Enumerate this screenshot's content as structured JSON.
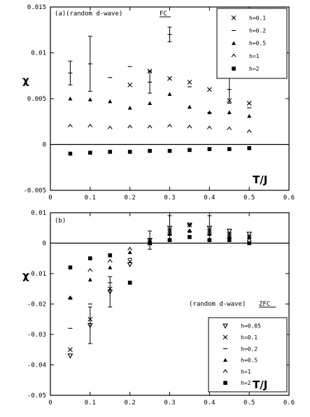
{
  "chart_data": [
    {
      "type": "scatter",
      "panel_label": "(a)",
      "annotation": "(random d-wave)",
      "tag": "FC",
      "xlabel": "T/J",
      "ylabel": "χ",
      "xlim": [
        0,
        0.6
      ],
      "ylim": [
        -0.005,
        0.015
      ],
      "xticks": [
        "0",
        "0.1",
        "0.2",
        "0.3",
        "0.4",
        "0.5",
        "0.6"
      ],
      "yticks": [
        "-0.005",
        "0",
        "0.005",
        "0.01",
        "0.015"
      ],
      "legend_position": "top-right",
      "zero_line": true,
      "series": [
        {
          "name": "h=0.1",
          "marker": "x",
          "x": [
            0.2,
            0.25,
            0.3,
            0.35,
            0.4,
            0.45,
            0.5
          ],
          "y": [
            0.0065,
            0.008,
            0.0072,
            0.0068,
            0.006,
            0.0048,
            0.0045
          ]
        },
        {
          "name": "h=0.2",
          "marker": "dash",
          "x": [
            0.05,
            0.1,
            0.15,
            0.2,
            0.25,
            0.3,
            0.35,
            0.4,
            0.45,
            0.5
          ],
          "y": [
            0.0078,
            0.0088,
            0.0073,
            0.0085,
            0.0068,
            0.012,
            0.0063,
            0.0035,
            0.006,
            0.004
          ],
          "err": [
            0.0013,
            0.003,
            0,
            0,
            0.0012,
            0.0008,
            0,
            0,
            0.0015,
            0
          ]
        },
        {
          "name": "h=0.5",
          "marker": "triangle",
          "x": [
            0.05,
            0.1,
            0.15,
            0.2,
            0.25,
            0.3,
            0.35,
            0.4,
            0.45,
            0.5
          ],
          "y": [
            0.005,
            0.0049,
            0.0047,
            0.004,
            0.0045,
            0.0055,
            0.0041,
            0.0035,
            0.0035,
            0.0031
          ]
        },
        {
          "name": "h=1",
          "marker": "caret",
          "x": [
            0.05,
            0.1,
            0.15,
            0.2,
            0.25,
            0.3,
            0.35,
            0.4,
            0.45,
            0.5
          ],
          "y": [
            0.002,
            0.002,
            0.0018,
            0.0019,
            0.0019,
            0.002,
            0.0019,
            0.0018,
            0.0017,
            0.0014
          ]
        },
        {
          "name": "h=2",
          "marker": "square",
          "x": [
            0.05,
            0.1,
            0.15,
            0.2,
            0.25,
            0.3,
            0.35,
            0.4,
            0.45,
            0.5
          ],
          "y": [
            -0.001,
            -0.0009,
            -0.0008,
            -0.0008,
            -0.0007,
            -0.0007,
            -0.0006,
            -0.0005,
            -0.0005,
            -0.0004
          ]
        }
      ]
    },
    {
      "type": "scatter",
      "panel_label": "(b)",
      "annotation": "(random d-wave)",
      "tag": "ZFC",
      "xlabel": "T/J",
      "ylabel": "χ",
      "xlim": [
        0,
        0.6
      ],
      "ylim": [
        -0.05,
        0.01
      ],
      "xticks": [
        "0",
        "0.1",
        "0.2",
        "0.3",
        "0.4",
        "0.5",
        "0.6"
      ],
      "yticks": [
        "-0.05",
        "-0.04",
        "-0.03",
        "-0.02",
        "-0.01",
        "0",
        "0.01"
      ],
      "legend_position": "lower-right",
      "zero_line": true,
      "series": [
        {
          "name": "h=0.05",
          "marker": "triangle-down",
          "x": [
            0.05,
            0.1,
            0.15,
            0.2,
            0.25,
            0.3,
            0.35,
            0.4,
            0.45,
            0.5
          ],
          "y": [
            -0.037,
            -0.027,
            -0.016,
            -0.007,
            0.001,
            0.005,
            0.006,
            0.005,
            0.004,
            0.003
          ],
          "err": [
            0,
            0.006,
            0.005,
            0,
            0.003,
            0.004,
            0,
            0.004,
            0,
            0
          ]
        },
        {
          "name": "h=0.1",
          "marker": "x",
          "x": [
            0.05,
            0.1,
            0.15,
            0.2,
            0.25,
            0.3,
            0.35,
            0.4,
            0.45,
            0.5
          ],
          "y": [
            -0.035,
            -0.025,
            -0.015,
            -0.006,
            0.0,
            0.004,
            0.006,
            0.004,
            0.003,
            0.002
          ]
        },
        {
          "name": "h=0.2",
          "marker": "dash",
          "x": [
            0.05,
            0.1,
            0.15,
            0.2,
            0.25,
            0.3,
            0.35,
            0.4,
            0.45,
            0.5
          ],
          "y": [
            -0.028,
            -0.02,
            -0.013,
            -0.005,
            0.0,
            0.004,
            0.006,
            0.004,
            0.003,
            0.002
          ]
        },
        {
          "name": "h=0.5",
          "marker": "triangle",
          "x": [
            0.05,
            0.1,
            0.15,
            0.2,
            0.25,
            0.3,
            0.35,
            0.4,
            0.45,
            0.5
          ],
          "y": [
            -0.018,
            -0.012,
            -0.008,
            -0.003,
            0.001,
            0.003,
            0.004,
            0.003,
            0.002,
            0.002
          ]
        },
        {
          "name": "h=1",
          "marker": "caret",
          "x": [
            0.05,
            0.1,
            0.15,
            0.2,
            0.25,
            0.3,
            0.35,
            0.4,
            0.45,
            0.5
          ],
          "y": [
            -0.018,
            -0.009,
            -0.006,
            -0.002,
            0.0,
            0.003,
            0.004,
            0.003,
            0.002,
            0.001
          ]
        },
        {
          "name": "h=2",
          "marker": "square",
          "x": [
            0.05,
            0.1,
            0.15,
            0.2,
            0.25,
            0.3,
            0.35,
            0.4,
            0.45,
            0.5
          ],
          "y": [
            -0.008,
            -0.005,
            -0.004,
            -0.013,
            0.0,
            0.001,
            0.002,
            0.001,
            0.001,
            0.0
          ]
        }
      ]
    }
  ]
}
